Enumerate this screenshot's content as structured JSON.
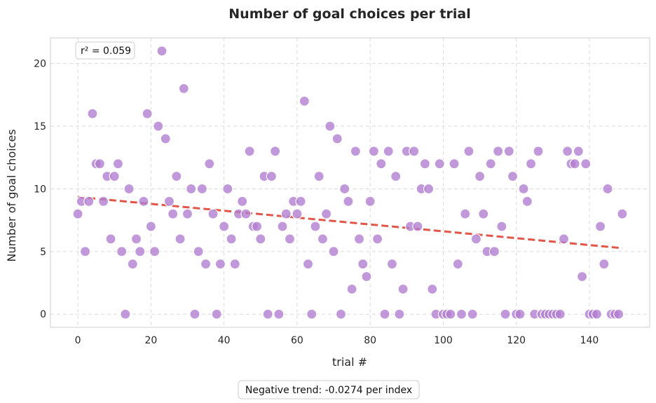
{
  "chart_data": {
    "type": "scatter",
    "title": "Number of goal choices per trial",
    "xlabel": "trial #",
    "ylabel": "Number of goal choices",
    "xlim": [
      -7.5,
      156.5
    ],
    "ylim": [
      -1.05,
      22.05
    ],
    "xticks": [
      "0",
      "20",
      "40",
      "60",
      "80",
      "100",
      "120",
      "140"
    ],
    "yticks": [
      "0",
      "5",
      "10",
      "15",
      "20"
    ],
    "grid": true,
    "colors": {
      "points": "#b27ed0",
      "point_edge": "#ffffff",
      "trend": "#e0574a",
      "grid": "#d9d9d9"
    },
    "annotation": "r² = 0.059",
    "footer_note": "Negative trend: -0.0274 per index",
    "trend": {
      "slope": -0.0274,
      "intercept": 9.35,
      "x_range": [
        0,
        149
      ]
    },
    "x": [
      0,
      1,
      2,
      3,
      4,
      5,
      6,
      7,
      8,
      9,
      10,
      11,
      12,
      13,
      14,
      15,
      16,
      17,
      18,
      19,
      20,
      21,
      22,
      23,
      24,
      25,
      26,
      27,
      28,
      29,
      30,
      31,
      32,
      33,
      34,
      35,
      36,
      37,
      38,
      39,
      40,
      41,
      42,
      43,
      44,
      45,
      46,
      47,
      48,
      49,
      50,
      51,
      52,
      53,
      54,
      55,
      56,
      57,
      58,
      59,
      60,
      61,
      62,
      63,
      64,
      65,
      66,
      67,
      68,
      69,
      70,
      71,
      72,
      73,
      74,
      75,
      76,
      77,
      78,
      79,
      80,
      81,
      82,
      83,
      84,
      85,
      86,
      87,
      88,
      89,
      90,
      91,
      92,
      93,
      94,
      95,
      96,
      97,
      98,
      99,
      100,
      101,
      102,
      103,
      104,
      105,
      106,
      107,
      108,
      109,
      110,
      111,
      112,
      113,
      114,
      115,
      116,
      117,
      118,
      119,
      120,
      121,
      122,
      123,
      124,
      125,
      126,
      127,
      128,
      129,
      130,
      131,
      132,
      133,
      134,
      135,
      136,
      137,
      138,
      139,
      140,
      141,
      142,
      143,
      144,
      145,
      146,
      147,
      148,
      149
    ],
    "y": [
      8,
      9,
      5,
      9,
      16,
      12,
      12,
      9,
      11,
      6,
      11,
      12,
      5,
      0,
      10,
      4,
      6,
      5,
      9,
      16,
      7,
      5,
      15,
      21,
      14,
      9,
      8,
      11,
      6,
      18,
      8,
      10,
      0,
      5,
      10,
      4,
      12,
      8,
      0,
      4,
      7,
      10,
      6,
      4,
      8,
      9,
      8,
      13,
      7,
      7,
      6,
      11,
      0,
      11,
      13,
      0,
      7,
      8,
      6,
      9,
      8,
      9,
      17,
      4,
      0,
      7,
      11,
      6,
      8,
      15,
      5,
      14,
      0,
      10,
      9,
      2,
      13,
      6,
      4,
      3,
      9,
      13,
      6,
      12,
      0,
      13,
      4,
      11,
      0,
      2,
      13,
      7,
      13,
      7,
      10,
      12,
      10,
      2,
      0,
      12,
      0,
      0,
      0,
      12,
      4,
      0,
      8,
      13,
      0,
      6,
      11,
      8,
      5,
      12,
      5,
      13,
      7,
      0,
      13,
      11,
      0,
      0,
      10,
      9,
      12,
      0,
      13,
      0,
      0,
      0,
      0,
      0,
      0,
      6,
      13,
      12,
      12,
      13,
      3,
      12,
      0,
      0,
      0,
      7,
      4,
      10,
      0,
      0,
      0,
      8
    ]
  }
}
